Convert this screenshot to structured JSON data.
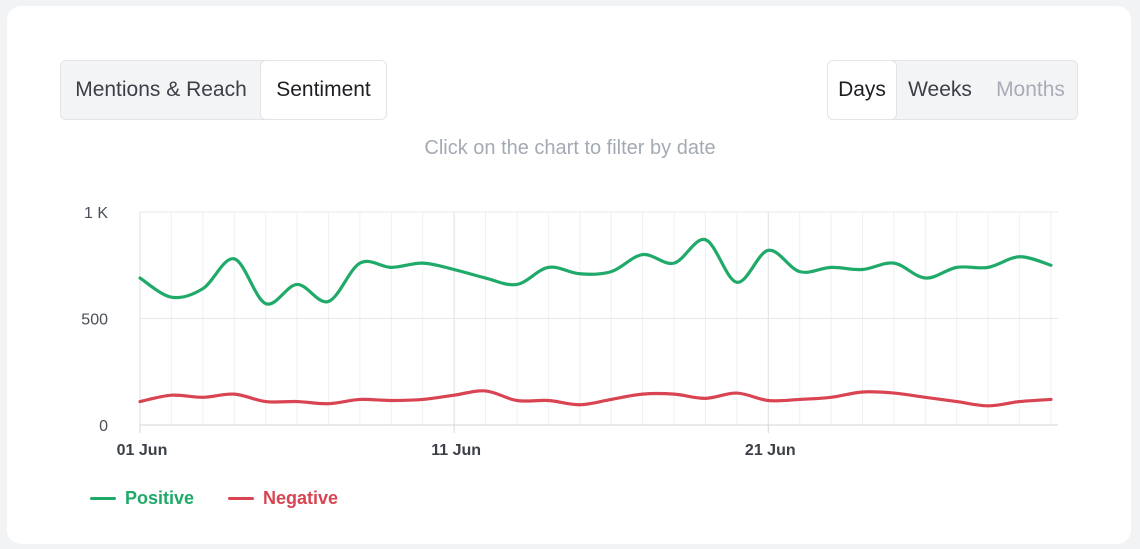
{
  "tabs": {
    "views": [
      {
        "label": "Mentions & Reach",
        "active": false
      },
      {
        "label": "Sentiment",
        "active": true
      }
    ],
    "periods": [
      {
        "label": "Days",
        "active": true
      },
      {
        "label": "Weeks",
        "active": false
      },
      {
        "label": "Months",
        "active": false,
        "disabled": true
      }
    ]
  },
  "hint": "Click on the chart to filter by date",
  "chart_data": {
    "type": "line",
    "x": [
      "01 Jun",
      "02 Jun",
      "03 Jun",
      "04 Jun",
      "05 Jun",
      "06 Jun",
      "07 Jun",
      "08 Jun",
      "09 Jun",
      "10 Jun",
      "11 Jun",
      "12 Jun",
      "13 Jun",
      "14 Jun",
      "15 Jun",
      "16 Jun",
      "17 Jun",
      "18 Jun",
      "19 Jun",
      "20 Jun",
      "21 Jun",
      "22 Jun",
      "23 Jun",
      "24 Jun",
      "25 Jun",
      "26 Jun",
      "27 Jun",
      "28 Jun",
      "29 Jun",
      "30 Jun"
    ],
    "xticks": [
      "01 Jun",
      "11 Jun",
      "21 Jun"
    ],
    "ylim": [
      0,
      1000
    ],
    "yticks": [
      0,
      500,
      1000
    ],
    "ytick_labels": [
      "0",
      "500",
      "1 K"
    ],
    "grid": true,
    "legend_placement": "bottom-left",
    "series": [
      {
        "name": "Positive",
        "color": "#1faa6a",
        "values": [
          690,
          600,
          640,
          780,
          570,
          660,
          580,
          760,
          740,
          760,
          730,
          690,
          660,
          740,
          710,
          720,
          800,
          760,
          870,
          670,
          820,
          720,
          740,
          730,
          760,
          690,
          740,
          740,
          790,
          750
        ]
      },
      {
        "name": "Negative",
        "color": "#d94452",
        "values": [
          110,
          140,
          130,
          145,
          110,
          110,
          100,
          120,
          115,
          120,
          140,
          160,
          115,
          115,
          95,
          120,
          145,
          145,
          125,
          150,
          115,
          120,
          130,
          155,
          150,
          130,
          110,
          90,
          110,
          120
        ]
      }
    ]
  }
}
